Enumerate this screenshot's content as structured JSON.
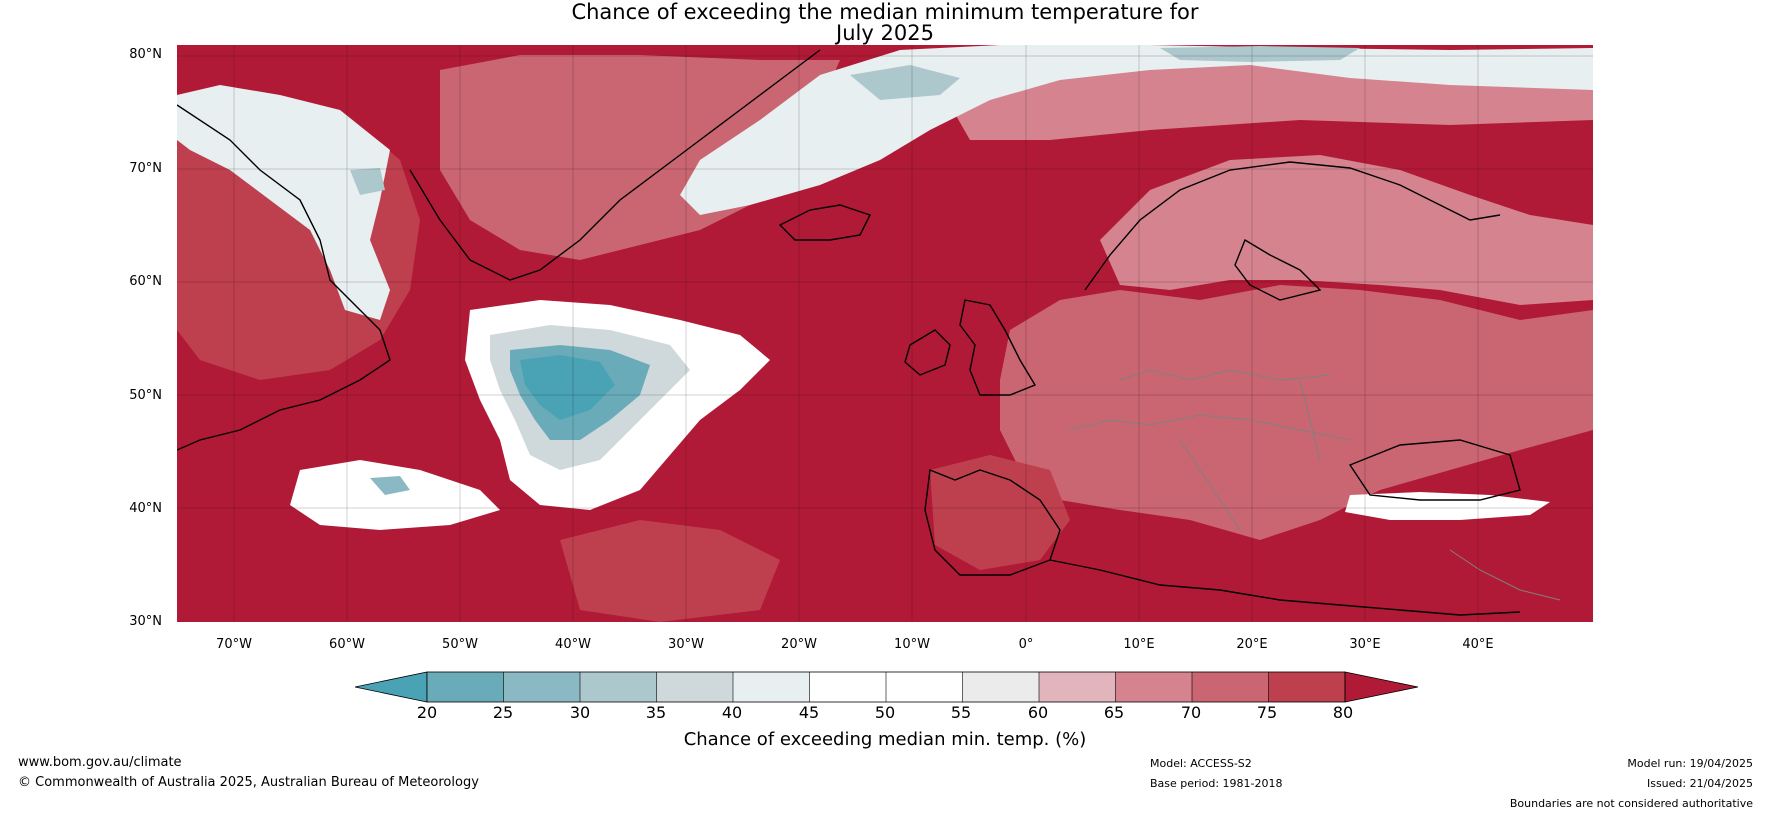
{
  "title": {
    "line1": "Chance of exceeding the median minimum temperature for",
    "line2": "July 2025"
  },
  "map": {
    "lon_range": [
      -75,
      50
    ],
    "lat_range": [
      30,
      81
    ],
    "lat_ticks": [
      "80°N",
      "70°N",
      "60°N",
      "50°N",
      "40°N",
      "30°N"
    ],
    "lon_ticks": [
      "70°W",
      "60°W",
      "50°W",
      "40°W",
      "30°W",
      "20°W",
      "10°W",
      "0°",
      "10°E",
      "20°E",
      "30°E",
      "40°E"
    ],
    "base_color": "#b11a36"
  },
  "colorbar": {
    "title": "Chance of exceeding median min. temp. (%)",
    "ticks": [
      "20",
      "25",
      "30",
      "35",
      "40",
      "45",
      "50",
      "55",
      "60",
      "65",
      "70",
      "75",
      "80"
    ],
    "colors": [
      "#4aa3b5",
      "#6aabb9",
      "#8ab8c3",
      "#adc8cd",
      "#cfd9dc",
      "#e8eff0",
      "#ffffff",
      "#ffffff",
      "#ecebec",
      "#e2b5bc",
      "#d4838f",
      "#c96672",
      "#be404f",
      "#b11a36"
    ]
  },
  "footer": {
    "website": "www.bom.gov.au/climate",
    "copyright": "© Commonwealth of Australia 2025, Australian Bureau of Meteorology",
    "model": "Model: ACCESS-S2",
    "base_period": "Base period: 1981-2018",
    "model_run": "Model run: 19/04/2025",
    "issued": "Issued: 21/04/2025",
    "disclaimer": "Boundaries are not considered authoritative"
  }
}
